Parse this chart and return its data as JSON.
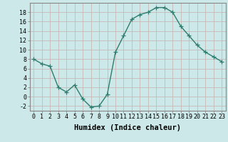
{
  "x": [
    0,
    1,
    2,
    3,
    4,
    5,
    6,
    7,
    8,
    9,
    10,
    11,
    12,
    13,
    14,
    15,
    16,
    17,
    18,
    19,
    20,
    21,
    22,
    23
  ],
  "y": [
    8,
    7,
    6.5,
    2,
    1,
    2.5,
    -0.5,
    -2.2,
    -2,
    0.5,
    9.5,
    13,
    16.5,
    17.5,
    18,
    19,
    19,
    18,
    15,
    13,
    11,
    9.5,
    8.5,
    7.5
  ],
  "line_color": "#2e7d6e",
  "marker": "+",
  "marker_size": 4,
  "bg_color": "#cce8e8",
  "grid_color": "#c8b8b8",
  "title": "",
  "xlabel": "Humidex (Indice chaleur)",
  "ylabel": "",
  "xlim": [
    -0.5,
    23.5
  ],
  "ylim": [
    -3,
    20
  ],
  "yticks": [
    -2,
    0,
    2,
    4,
    6,
    8,
    10,
    12,
    14,
    16,
    18
  ],
  "xticks": [
    0,
    1,
    2,
    3,
    4,
    5,
    6,
    7,
    8,
    9,
    10,
    11,
    12,
    13,
    14,
    15,
    16,
    17,
    18,
    19,
    20,
    21,
    22,
    23
  ],
  "tick_label_fontsize": 6,
  "xlabel_fontsize": 7.5,
  "line_width": 1.0,
  "spine_color": "#888888"
}
